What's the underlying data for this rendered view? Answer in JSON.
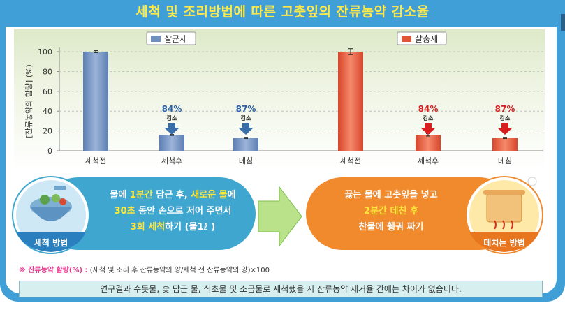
{
  "title": "세척 및 조리방법에 따른 고춧잎의 잔류농약 감소율",
  "colors": {
    "frame": "#3f9fd6",
    "title": "#ffe84a",
    "blue_bar": "#6f8fbf",
    "red_bar": "#e2553a",
    "blue_arrow": "#3a6ea8",
    "red_arrow": "#d81e1e",
    "blue_text": "#2e62a8",
    "red_text": "#d42020"
  },
  "chart_data": [
    {
      "type": "bar",
      "legend": "살균제",
      "categories": [
        "세척전",
        "세척후",
        "데침"
      ],
      "values": [
        100,
        16,
        13
      ],
      "error": [
        1,
        0.6,
        0.6
      ],
      "ylabel": "[잔류농약의 함량] (%)",
      "ylim": [
        0,
        100
      ],
      "yticks": [
        "0",
        "20",
        "40",
        "60",
        "80",
        "100"
      ],
      "annotations": [
        {
          "category": "세척후",
          "pct": "84%",
          "text": "감소"
        },
        {
          "category": "데침",
          "pct": "87%",
          "text": "감소"
        }
      ]
    },
    {
      "type": "bar",
      "legend": "살충제",
      "categories": [
        "세척전",
        "세척후",
        "데침"
      ],
      "values": [
        100,
        16,
        13
      ],
      "error": [
        3,
        1.2,
        0.6
      ],
      "ylim": [
        0,
        100
      ],
      "annotations": [
        {
          "category": "세척후",
          "pct": "84%",
          "text": "감소"
        },
        {
          "category": "데침",
          "pct": "87%",
          "text": "감소"
        }
      ]
    }
  ],
  "wash": {
    "label": "세척 방법",
    "parts": [
      [
        [
          "물에 ",
          0
        ],
        [
          "1분간",
          1
        ],
        [
          " 담근 후, ",
          0
        ],
        [
          "새로운 물",
          1
        ],
        [
          "에",
          0
        ]
      ],
      [
        [
          "30초",
          1
        ],
        [
          " 동안 손으로 저어 주면서",
          0
        ]
      ],
      [
        [
          "3회 세척",
          1
        ],
        [
          "하기 (물1ℓ )",
          0
        ]
      ]
    ]
  },
  "boil": {
    "label": "데치는 방법",
    "parts": [
      [
        [
          "끓는 물에 고춧잎을 넣고",
          0
        ]
      ],
      [
        [
          "2분간 데친 후",
          1
        ]
      ],
      [
        [
          "찬물에 휑궈 짜기",
          0
        ]
      ]
    ]
  },
  "note": {
    "head": "※ 잔류농약 함량(%) :",
    "text": "(세척 및 조리 후 잔류농약의 양/세척 전 잔류농약의 양)×100"
  },
  "footer": "연구결과 수돗물, 숯 담근 물, 식초물 및 소금물로 세척했을 시 잔류농약 제거율 간에는 차이가 없습니다."
}
